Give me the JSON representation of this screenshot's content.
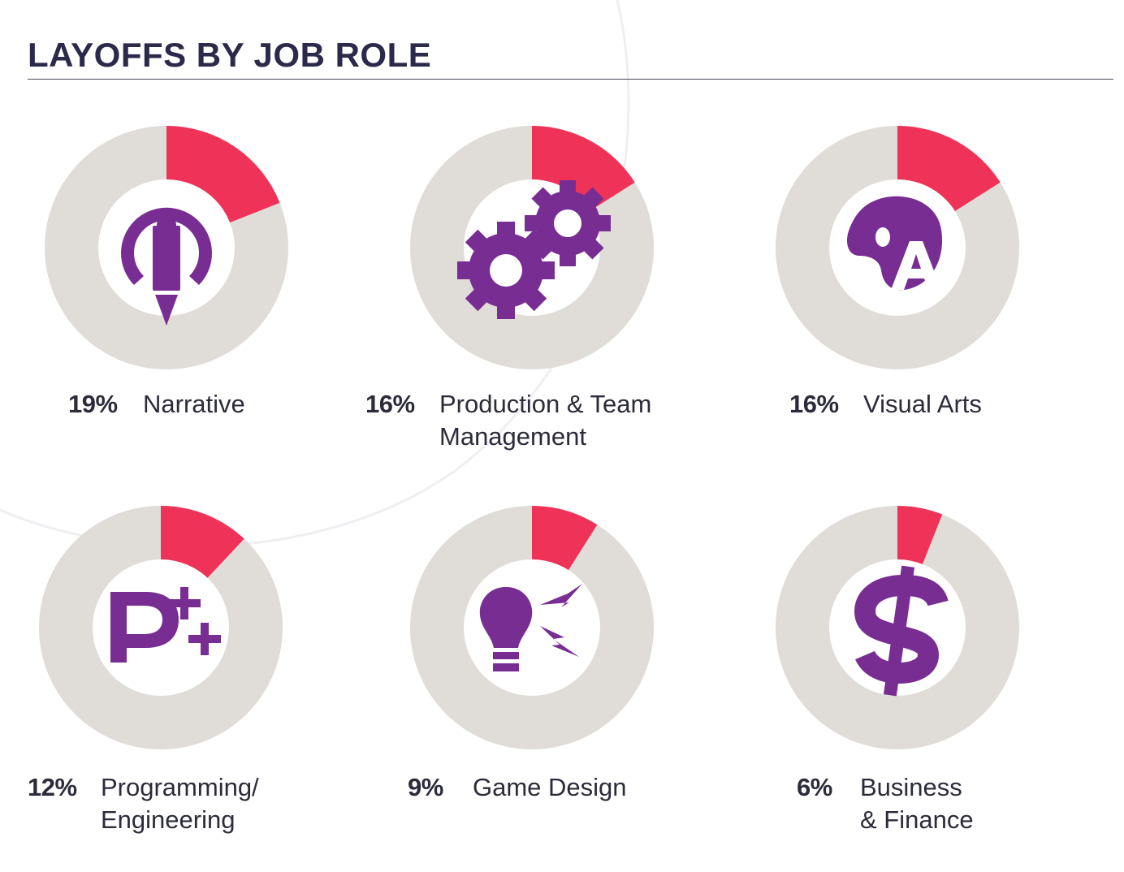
{
  "title": "LAYOFFS BY JOB ROLE",
  "colors": {
    "accent": "#ef3358",
    "track": "#e0dcd8",
    "icon": "#782d92",
    "title": "#2c2a4a"
  },
  "chart_data": [
    {
      "type": "pie",
      "category": "Narrative",
      "value": 19,
      "label": "19%",
      "role_label": "Narrative",
      "icon": "pencil-power-icon"
    },
    {
      "type": "pie",
      "category": "Production & Team Management",
      "value": 16,
      "label": "16%",
      "role_label": "Production & Team\nManagement",
      "icon": "gears-icon"
    },
    {
      "type": "pie",
      "category": "Visual Arts",
      "value": 16,
      "label": "16%",
      "role_label": "Visual Arts",
      "icon": "palette-icon"
    },
    {
      "type": "pie",
      "category": "Programming/Engineering",
      "value": 12,
      "label": "12%",
      "role_label": "Programming/\nEngineering",
      "icon": "p-plus-plus-icon"
    },
    {
      "type": "pie",
      "category": "Game Design",
      "value": 9,
      "label": "9%",
      "role_label": "Game Design",
      "icon": "lightbulb-icon"
    },
    {
      "type": "pie",
      "category": "Business & Finance",
      "value": 6,
      "label": "6%",
      "role_label": "Business\n& Finance",
      "icon": "dollar-icon"
    }
  ]
}
